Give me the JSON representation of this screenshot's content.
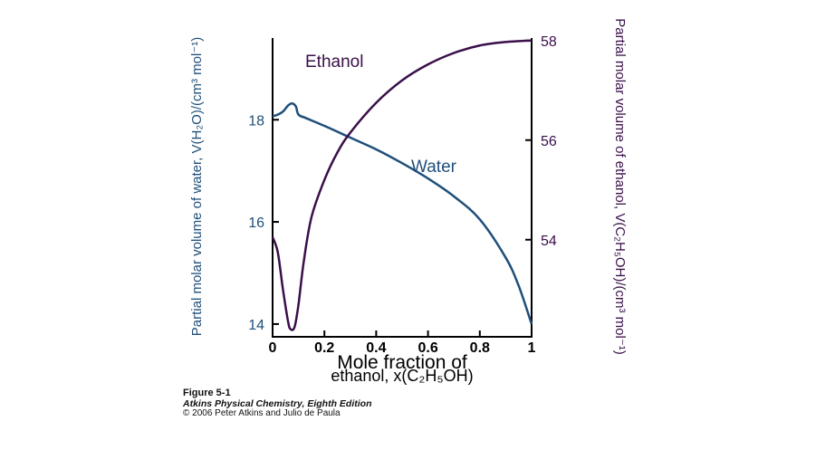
{
  "chart_data": {
    "type": "line",
    "xlabel_line1": "Mole fraction of",
    "xlabel_line2": "ethanol, x(C₂H₅OH)",
    "ylabel_left": "Partial molar volume of water, V(H₂O)/(cm³ mol⁻¹)",
    "ylabel_right": "Partial molar volume of ethanol, V(C₂H₅OH)/(cm³ mol⁻¹)",
    "xlim": [
      0,
      1
    ],
    "ylim_left": [
      13.75,
      19.6
    ],
    "ylim_right": [
      52.05,
      58.05
    ],
    "x_ticks": [
      "0",
      "0.2",
      "0.4",
      "0.6",
      "0.8",
      "1"
    ],
    "y_left_ticks": [
      "14",
      "16",
      "18"
    ],
    "y_right_ticks": [
      "54",
      "56",
      "58"
    ],
    "series": [
      {
        "name": "Water",
        "axis": "left",
        "color": "#1f4f7a",
        "x": [
          0,
          0.02,
          0.04,
          0.06,
          0.075,
          0.09,
          0.1,
          0.13,
          0.2,
          0.3,
          0.4,
          0.5,
          0.6,
          0.7,
          0.8,
          0.9,
          0.95,
          1.0
        ],
        "y": [
          18.07,
          18.1,
          18.16,
          18.28,
          18.32,
          18.26,
          18.1,
          18.03,
          17.88,
          17.65,
          17.42,
          17.15,
          16.85,
          16.5,
          16.05,
          15.3,
          14.75,
          14.0
        ]
      },
      {
        "name": "Ethanol",
        "axis": "right",
        "color": "#3a0f4a",
        "x": [
          0,
          0.02,
          0.04,
          0.06,
          0.07,
          0.085,
          0.1,
          0.12,
          0.15,
          0.2,
          0.25,
          0.3,
          0.4,
          0.5,
          0.6,
          0.7,
          0.8,
          0.9,
          1.0
        ],
        "y": [
          54.05,
          53.75,
          53.0,
          52.35,
          52.2,
          52.25,
          52.7,
          53.55,
          54.45,
          55.2,
          55.75,
          56.15,
          56.75,
          57.2,
          57.52,
          57.75,
          57.9,
          57.97,
          58.0
        ]
      }
    ]
  },
  "caption": {
    "figure": "Figure 5-1",
    "book": "Atkins Physical Chemistry, Eighth Edition",
    "copyright": "© 2006 Peter Atkins and Julio de Paula"
  },
  "colors": {
    "water": "#1f4f7a",
    "ethanol": "#3a0f4a",
    "axis": "#000000"
  }
}
